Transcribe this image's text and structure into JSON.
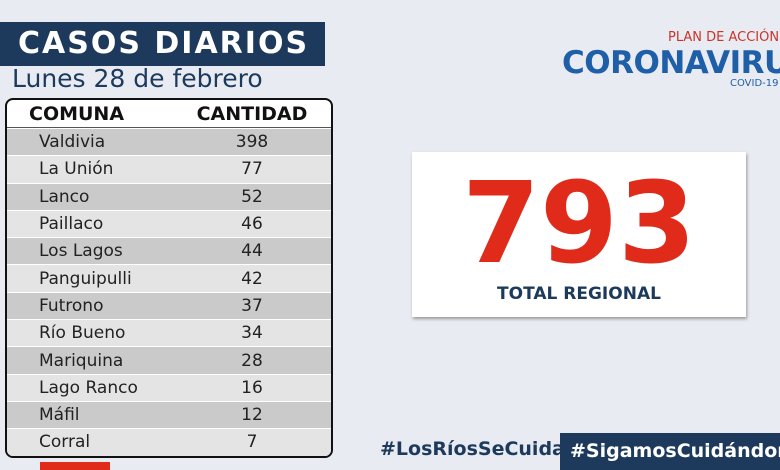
{
  "header": {
    "title": "CASOS DIARIOS",
    "date": "Lunes 28 de febrero"
  },
  "logo": {
    "plan": "PLAN DE ACCIÓN",
    "name": "CORONAVIRUS",
    "sub": "COVID-19"
  },
  "table": {
    "columns": [
      "COMUNA",
      "CANTIDAD"
    ],
    "rows": [
      [
        "Valdivia",
        398
      ],
      [
        "La Unión",
        77
      ],
      [
        "Lanco",
        52
      ],
      [
        "Paillaco",
        46
      ],
      [
        "Los Lagos",
        44
      ],
      [
        "Panguipulli",
        42
      ],
      [
        "Futrono",
        37
      ],
      [
        "Río Bueno",
        34
      ],
      [
        "Mariquina",
        28
      ],
      [
        "Lago Ranco",
        16
      ],
      [
        "Máfil",
        12
      ],
      [
        "Corral",
        7
      ]
    ]
  },
  "total": {
    "value": 793,
    "label": "TOTAL REGIONAL"
  },
  "hashtags": [
    "#LosRíosSeCuida",
    "#SigamosCuidándonos"
  ]
}
